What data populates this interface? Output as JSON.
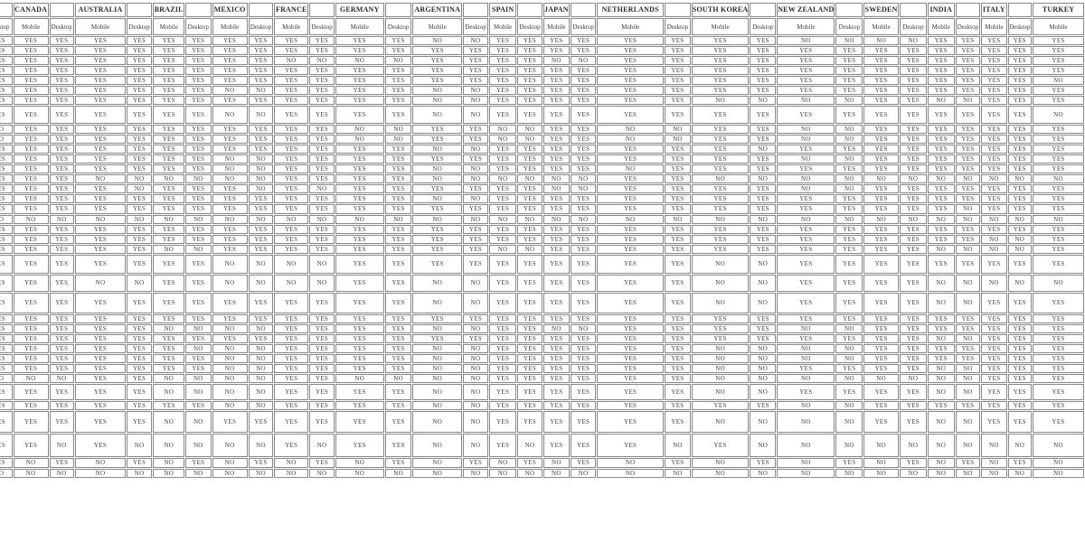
{
  "table": {
    "subheader_labels": {
      "mobile": "Mobile",
      "desktop": "Desktop"
    },
    "partial_left_column": {
      "subheader": "Desktop"
    },
    "countries": [
      "CANADA",
      "AUSTRALIA",
      "BRAZIL",
      "MEXICO",
      "FRANCE",
      "GERMANY",
      "ARGENTINA",
      "SPAIN",
      "JAPAN",
      "NETHERLANDS",
      "SOUTH KOREA",
      "NEW ZEALAND",
      "SWEDEN",
      "INDIA",
      "ITALY",
      "TURKEY"
    ],
    "rows": [
      [
        "YES",
        "YES",
        "YES",
        "YES",
        "YES",
        "YES",
        "YES",
        "YES",
        "YES",
        "YES",
        "YES",
        "YES",
        "YES",
        "NO",
        "NO",
        "YES",
        "YES",
        "YES",
        "YES",
        "YES",
        "YES",
        "YES",
        "YES",
        "NO",
        "NO",
        "NO",
        "NO",
        "YES",
        "YES",
        "YES",
        "YES",
        "YES"
      ],
      [
        "YES",
        "YES",
        "YES",
        "YES",
        "YES",
        "YES",
        "YES",
        "YES",
        "YES",
        "YES",
        "YES",
        "YES",
        "YES",
        "YES",
        "YES",
        "YES",
        "YES",
        "YES",
        "YES",
        "YES",
        "YES",
        "YES",
        "YES",
        "YES",
        "YES",
        "YES",
        "YES",
        "YES",
        "YES",
        "YES",
        "YES",
        "YES"
      ],
      [
        "YES",
        "YES",
        "YES",
        "YES",
        "YES",
        "YES",
        "YES",
        "YES",
        "YES",
        "NO",
        "NO",
        "NO",
        "NO",
        "YES",
        "YES",
        "YES",
        "YES",
        "NO",
        "NO",
        "YES",
        "YES",
        "YES",
        "YES",
        "YES",
        "YES",
        "YES",
        "YES",
        "YES",
        "YES",
        "YES",
        "YES",
        "YES"
      ],
      [
        "YES",
        "YES",
        "YES",
        "YES",
        "YES",
        "YES",
        "YES",
        "YES",
        "YES",
        "YES",
        "YES",
        "YES",
        "YES",
        "YES",
        "YES",
        "YES",
        "YES",
        "YES",
        "YES",
        "YES",
        "YES",
        "YES",
        "YES",
        "YES",
        "YES",
        "YES",
        "YES",
        "YES",
        "YES",
        "YES",
        "YES",
        "YES"
      ],
      [
        "YES",
        "YES",
        "YES",
        "YES",
        "YES",
        "YES",
        "YES",
        "YES",
        "YES",
        "YES",
        "YES",
        "YES",
        "YES",
        "YES",
        "YES",
        "YES",
        "YES",
        "YES",
        "YES",
        "YES",
        "YES",
        "YES",
        "YES",
        "YES",
        "YES",
        "YES",
        "YES",
        "YES",
        "YES",
        "YES",
        "YES",
        "NO"
      ],
      [
        "YES",
        "YES",
        "YES",
        "YES",
        "YES",
        "YES",
        "YES",
        "NO",
        "NO",
        "YES",
        "YES",
        "YES",
        "YES",
        "NO",
        "NO",
        "YES",
        "YES",
        "YES",
        "YES",
        "YES",
        "YES",
        "YES",
        "YES",
        "YES",
        "YES",
        "YES",
        "YES",
        "YES",
        "YES",
        "YES",
        "YES",
        "YES"
      ],
      [
        "YES",
        "YES",
        "YES",
        "YES",
        "YES",
        "YES",
        "YES",
        "YES",
        "YES",
        "YES",
        "YES",
        "YES",
        "YES",
        "NO",
        "NO",
        "YES",
        "YES",
        "YES",
        "YES",
        "YES",
        "YES",
        "NO",
        "NO",
        "NO",
        "NO",
        "YES",
        "YES",
        "NO",
        "NO",
        "YES",
        "YES",
        "YES"
      ],
      [
        "YES",
        "YES",
        "YES",
        "YES",
        "YES",
        "YES",
        "YES",
        "NO",
        "NO",
        "YES",
        "YES",
        "YES",
        "YES",
        "NO",
        "NO",
        "YES",
        "YES",
        "YES",
        "YES",
        "YES",
        "YES",
        "YES",
        "YES",
        "YES",
        "YES",
        "YES",
        "YES",
        "YES",
        "YES",
        "YES",
        "YES",
        "NO"
      ],
      [
        "NO",
        "YES",
        "YES",
        "YES",
        "YES",
        "YES",
        "YES",
        "YES",
        "YES",
        "YES",
        "YES",
        "NO",
        "NO",
        "YES",
        "YES",
        "NO",
        "NO",
        "YES",
        "YES",
        "NO",
        "NO",
        "YES",
        "YES",
        "NO",
        "NO",
        "YES",
        "YES",
        "YES",
        "YES",
        "YES",
        "YES",
        "YES"
      ],
      [
        "NO",
        "YES",
        "YES",
        "YES",
        "YES",
        "YES",
        "YES",
        "YES",
        "YES",
        "YES",
        "YES",
        "NO",
        "NO",
        "YES",
        "YES",
        "NO",
        "NO",
        "YES",
        "YES",
        "NO",
        "NO",
        "YES",
        "YES",
        "NO",
        "NO",
        "YES",
        "YES",
        "YES",
        "YES",
        "YES",
        "YES",
        "YES"
      ],
      [
        "YES",
        "YES",
        "YES",
        "YES",
        "YES",
        "YES",
        "YES",
        "YES",
        "YES",
        "YES",
        "YES",
        "YES",
        "YES",
        "NO",
        "NO",
        "YES",
        "YES",
        "YES",
        "YES",
        "YES",
        "YES",
        "YES",
        "NO",
        "YES",
        "YES",
        "YES",
        "YES",
        "YES",
        "YES",
        "YES",
        "YES",
        "YES"
      ],
      [
        "YES",
        "YES",
        "YES",
        "YES",
        "YES",
        "YES",
        "YES",
        "NO",
        "NO",
        "YES",
        "YES",
        "YES",
        "YES",
        "YES",
        "YES",
        "YES",
        "YES",
        "YES",
        "YES",
        "YES",
        "YES",
        "YES",
        "YES",
        "NO",
        "NO",
        "YES",
        "YES",
        "YES",
        "YES",
        "YES",
        "YES",
        "YES"
      ],
      [
        "YES",
        "YES",
        "YES",
        "YES",
        "YES",
        "YES",
        "YES",
        "NO",
        "NO",
        "YES",
        "YES",
        "YES",
        "YES",
        "NO",
        "NO",
        "YES",
        "YES",
        "YES",
        "YES",
        "NO",
        "YES",
        "YES",
        "YES",
        "YES",
        "YES",
        "YES",
        "YES",
        "YES",
        "YES",
        "YES",
        "YES",
        "YES"
      ],
      [
        "YES",
        "YES",
        "YES",
        "NO",
        "NO",
        "NO",
        "NO",
        "NO",
        "NO",
        "YES",
        "YES",
        "YES",
        "YES",
        "NO",
        "NO",
        "NO",
        "NO",
        "NO",
        "NO",
        "YES",
        "YES",
        "NO",
        "NO",
        "NO",
        "NO",
        "NO",
        "NO",
        "NO",
        "NO",
        "NO",
        "NO",
        "NO"
      ],
      [
        "YES",
        "YES",
        "YES",
        "YES",
        "NO",
        "YES",
        "YES",
        "YES",
        "NO",
        "YES",
        "NO",
        "YES",
        "YES",
        "YES",
        "YES",
        "YES",
        "YES",
        "NO",
        "NO",
        "YES",
        "YES",
        "YES",
        "YES",
        "NO",
        "NO",
        "YES",
        "YES",
        "YES",
        "YES",
        "YES",
        "YES",
        "YES"
      ],
      [
        "YES",
        "YES",
        "YES",
        "YES",
        "YES",
        "YES",
        "YES",
        "YES",
        "YES",
        "YES",
        "YES",
        "YES",
        "YES",
        "NO",
        "NO",
        "YES",
        "YES",
        "YES",
        "YES",
        "YES",
        "YES",
        "YES",
        "YES",
        "YES",
        "YES",
        "YES",
        "YES",
        "YES",
        "YES",
        "YES",
        "YES",
        "YES"
      ],
      [
        "YES",
        "YES",
        "YES",
        "YES",
        "YES",
        "YES",
        "YES",
        "YES",
        "YES",
        "YES",
        "YES",
        "YES",
        "YES",
        "YES",
        "YES",
        "YES",
        "YES",
        "YES",
        "YES",
        "YES",
        "YES",
        "YES",
        "YES",
        "YES",
        "YES",
        "YES",
        "YES",
        "YES",
        "NO",
        "YES",
        "YES",
        "YES"
      ],
      [
        "NO",
        "NO",
        "NO",
        "NO",
        "NO",
        "NO",
        "NO",
        "NO",
        "NO",
        "NO",
        "NO",
        "NO",
        "NO",
        "NO",
        "NO",
        "NO",
        "NO",
        "NO",
        "NO",
        "NO",
        "NO",
        "NO",
        "NO",
        "NO",
        "NO",
        "NO",
        "NO",
        "NO",
        "NO",
        "NO",
        "NO",
        "NO"
      ],
      [
        "YES",
        "YES",
        "YES",
        "YES",
        "YES",
        "YES",
        "YES",
        "YES",
        "YES",
        "YES",
        "YES",
        "YES",
        "YES",
        "YES",
        "YES",
        "YES",
        "YES",
        "YES",
        "YES",
        "YES",
        "YES",
        "YES",
        "YES",
        "YES",
        "YES",
        "YES",
        "YES",
        "YES",
        "YES",
        "YES",
        "YES",
        "YES"
      ],
      [
        "YES",
        "YES",
        "YES",
        "YES",
        "YES",
        "YES",
        "YES",
        "YES",
        "YES",
        "YES",
        "YES",
        "YES",
        "YES",
        "YES",
        "YES",
        "YES",
        "YES",
        "YES",
        "YES",
        "YES",
        "YES",
        "YES",
        "YES",
        "YES",
        "YES",
        "YES",
        "YES",
        "YES",
        "YES",
        "NO",
        "NO",
        "YES"
      ],
      [
        "YES",
        "YES",
        "YES",
        "YES",
        "YES",
        "NO",
        "NO",
        "YES",
        "YES",
        "YES",
        "YES",
        "YES",
        "YES",
        "YES",
        "YES",
        "NO",
        "NO",
        "YES",
        "YES",
        "YES",
        "YES",
        "YES",
        "YES",
        "YES",
        "YES",
        "YES",
        "YES",
        "NO",
        "NO",
        "NO",
        "NO",
        "YES"
      ],
      [
        "YES",
        "YES",
        "YES",
        "YES",
        "YES",
        "YES",
        "YES",
        "NO",
        "NO",
        "NO",
        "NO",
        "YES",
        "YES",
        "YES",
        "YES",
        "YES",
        "YES",
        "YES",
        "YES",
        "YES",
        "YES",
        "NO",
        "NO",
        "YES",
        "YES",
        "YES",
        "YES",
        "YES",
        "YES",
        "YES",
        "YES",
        "YES"
      ],
      [
        "YES",
        "YES",
        "YES",
        "NO",
        "NO",
        "YES",
        "YES",
        "NO",
        "NO",
        "NO",
        "NO",
        "YES",
        "YES",
        "NO",
        "NO",
        "YES",
        "YES",
        "YES",
        "YES",
        "YES",
        "YES",
        "NO",
        "NO",
        "YES",
        "YES",
        "YES",
        "YES",
        "NO",
        "NO",
        "NO",
        "NO",
        "NO"
      ],
      [
        "YES",
        "YES",
        "YES",
        "YES",
        "YES",
        "YES",
        "YES",
        "YES",
        "YES",
        "YES",
        "YES",
        "YES",
        "YES",
        "NO",
        "NO",
        "YES",
        "YES",
        "YES",
        "YES",
        "YES",
        "YES",
        "NO",
        "NO",
        "YES",
        "YES",
        "YES",
        "YES",
        "NO",
        "NO",
        "YES",
        "YES",
        "YES"
      ],
      [
        "YES",
        "YES",
        "YES",
        "YES",
        "YES",
        "YES",
        "YES",
        "YES",
        "YES",
        "YES",
        "YES",
        "YES",
        "YES",
        "YES",
        "YES",
        "YES",
        "YES",
        "YES",
        "YES",
        "YES",
        "YES",
        "YES",
        "YES",
        "YES",
        "YES",
        "YES",
        "YES",
        "YES",
        "YES",
        "YES",
        "YES",
        "YES"
      ],
      [
        "YES",
        "YES",
        "YES",
        "YES",
        "YES",
        "NO",
        "NO",
        "NO",
        "NO",
        "YES",
        "YES",
        "YES",
        "YES",
        "NO",
        "NO",
        "YES",
        "YES",
        "NO",
        "NO",
        "YES",
        "YES",
        "YES",
        "YES",
        "NO",
        "NO",
        "YES",
        "YES",
        "YES",
        "YES",
        "YES",
        "YES",
        "YES"
      ],
      [
        "YES",
        "YES",
        "YES",
        "YES",
        "YES",
        "YES",
        "YES",
        "YES",
        "YES",
        "YES",
        "YES",
        "YES",
        "YES",
        "YES",
        "YES",
        "YES",
        "YES",
        "YES",
        "YES",
        "YES",
        "YES",
        "YES",
        "YES",
        "YES",
        "YES",
        "YES",
        "YES",
        "NO",
        "NO",
        "YES",
        "YES",
        "YES"
      ],
      [
        "YES",
        "YES",
        "YES",
        "YES",
        "YES",
        "YES",
        "NO",
        "NO",
        "NO",
        "YES",
        "YES",
        "YES",
        "YES",
        "NO",
        "NO",
        "YES",
        "YES",
        "YES",
        "YES",
        "YES",
        "YES",
        "NO",
        "NO",
        "NO",
        "NO",
        "YES",
        "YES",
        "YES",
        "YES",
        "YES",
        "YES",
        "YES"
      ],
      [
        "YES",
        "YES",
        "YES",
        "YES",
        "YES",
        "YES",
        "YES",
        "NO",
        "NO",
        "YES",
        "YES",
        "YES",
        "YES",
        "NO",
        "NO",
        "YES",
        "YES",
        "YES",
        "YES",
        "YES",
        "YES",
        "NO",
        "NO",
        "NO",
        "NO",
        "YES",
        "YES",
        "YES",
        "YES",
        "YES",
        "YES",
        "YES"
      ],
      [
        "YES",
        "YES",
        "YES",
        "YES",
        "YES",
        "YES",
        "YES",
        "NO",
        "NO",
        "YES",
        "YES",
        "YES",
        "YES",
        "NO",
        "NO",
        "YES",
        "YES",
        "YES",
        "YES",
        "YES",
        "YES",
        "NO",
        "NO",
        "YES",
        "YES",
        "YES",
        "YES",
        "NO",
        "NO",
        "YES",
        "YES",
        "YES"
      ],
      [
        "NO",
        "NO",
        "NO",
        "YES",
        "YES",
        "NO",
        "NO",
        "NO",
        "NO",
        "YES",
        "YES",
        "NO",
        "NO",
        "NO",
        "NO",
        "YES",
        "YES",
        "YES",
        "YES",
        "YES",
        "YES",
        "NO",
        "NO",
        "NO",
        "NO",
        "NO",
        "NO",
        "NO",
        "NO",
        "YES",
        "YES",
        "YES"
      ],
      [
        "YES",
        "YES",
        "YES",
        "YES",
        "YES",
        "NO",
        "NO",
        "NO",
        "NO",
        "YES",
        "YES",
        "YES",
        "YES",
        "NO",
        "NO",
        "YES",
        "YES",
        "YES",
        "YES",
        "YES",
        "YES",
        "NO",
        "NO",
        "YES",
        "YES",
        "YES",
        "YES",
        "NO",
        "NO",
        "YES",
        "YES",
        "YES"
      ],
      [
        "YES",
        "YES",
        "YES",
        "YES",
        "YES",
        "YES",
        "YES",
        "NO",
        "NO",
        "YES",
        "YES",
        "YES",
        "YES",
        "NO",
        "NO",
        "YES",
        "YES",
        "YES",
        "YES",
        "YES",
        "YES",
        "YES",
        "YES",
        "NO",
        "NO",
        "YES",
        "YES",
        "YES",
        "YES",
        "YES",
        "YES",
        "YES"
      ],
      [
        "YES",
        "YES",
        "YES",
        "YES",
        "YES",
        "NO",
        "NO",
        "YES",
        "YES",
        "YES",
        "YES",
        "YES",
        "YES",
        "NO",
        "NO",
        "YES",
        "YES",
        "YES",
        "YES",
        "YES",
        "YES",
        "NO",
        "NO",
        "NO",
        "NO",
        "YES",
        "YES",
        "NO",
        "NO",
        "YES",
        "YES",
        "YES"
      ],
      [
        "YES",
        "YES",
        "NO",
        "YES",
        "NO",
        "NO",
        "NO",
        "NO",
        "NO",
        "YES",
        "NO",
        "YES",
        "YES",
        "NO",
        "NO",
        "YES",
        "NO",
        "YES",
        "YES",
        "YES",
        "NO",
        "YES",
        "NO",
        "NO",
        "NO",
        "NO",
        "NO",
        "NO",
        "NO",
        "NO",
        "NO",
        "NO"
      ],
      [
        "YES",
        "NO",
        "YES",
        "NO",
        "YES",
        "NO",
        "YES",
        "NO",
        "YES",
        "NO",
        "YES",
        "NO",
        "YES",
        "NO",
        "YES",
        "NO",
        "YES",
        "NO",
        "YES",
        "NO",
        "YES",
        "NO",
        "YES",
        "NO",
        "YES",
        "NO",
        "YES",
        "NO",
        "YES",
        "NO",
        "YES",
        "NO"
      ],
      [
        "NO",
        "NO",
        "NO",
        "NO",
        "NO",
        "NO",
        "NO",
        "NO",
        "NO",
        "NO",
        "NO",
        "NO",
        "NO",
        "NO",
        "NO",
        "NO",
        "NO",
        "NO",
        "NO",
        "NO",
        "NO",
        "NO",
        "NO",
        "NO",
        "NO",
        "NO",
        "NO",
        "NO",
        "NO",
        "NO",
        "NO",
        "NO"
      ]
    ]
  }
}
